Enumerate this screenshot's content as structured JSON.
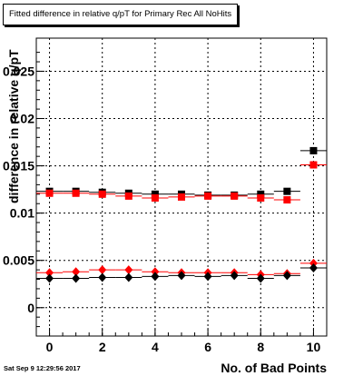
{
  "title": "Fitted difference in relative q/pT for Primary Rec All NoHits",
  "timestamp": "Sat Sep  9 12:29:56 2017",
  "chart_data": {
    "type": "scatter",
    "xlabel": "No. of Bad Points",
    "ylabel": "difference in relative q/pT",
    "xlim": [
      -0.5,
      10.5
    ],
    "ylim": [
      -0.003,
      0.0285
    ],
    "xticks": [
      "0",
      "2",
      "4",
      "6",
      "8",
      "10"
    ],
    "yticks": [
      "0",
      "0.005",
      "0.01",
      "0.015",
      "0.02",
      "0.025"
    ],
    "grid": true,
    "series": [
      {
        "marker": "square",
        "color": "#000000",
        "x": [
          0,
          1,
          2,
          3,
          4,
          5,
          6,
          7,
          8,
          9,
          10
        ],
        "y": [
          0.0123,
          0.0123,
          0.0122,
          0.0121,
          0.012,
          0.012,
          0.0119,
          0.0119,
          0.012,
          0.0123,
          0.0166
        ]
      },
      {
        "marker": "square",
        "color": "#ff0000",
        "x": [
          0,
          1,
          2,
          3,
          4,
          5,
          6,
          7,
          8,
          9,
          10
        ],
        "y": [
          0.0121,
          0.0121,
          0.012,
          0.0118,
          0.0116,
          0.0117,
          0.0118,
          0.0118,
          0.0116,
          0.0114,
          0.0151
        ]
      },
      {
        "marker": "diamond",
        "color": "#ff0000",
        "x": [
          0,
          1,
          2,
          3,
          4,
          5,
          6,
          7,
          8,
          9,
          10
        ],
        "y": [
          0.0037,
          0.0038,
          0.004,
          0.004,
          0.0038,
          0.0037,
          0.0037,
          0.0037,
          0.0035,
          0.0036,
          0.0047
        ]
      },
      {
        "marker": "diamond",
        "color": "#000000",
        "x": [
          0,
          1,
          2,
          3,
          4,
          5,
          6,
          7,
          8,
          9,
          10
        ],
        "y": [
          0.0031,
          0.0031,
          0.0032,
          0.0032,
          0.0033,
          0.0034,
          0.0033,
          0.0034,
          0.0031,
          0.0034,
          0.0042
        ]
      }
    ]
  }
}
